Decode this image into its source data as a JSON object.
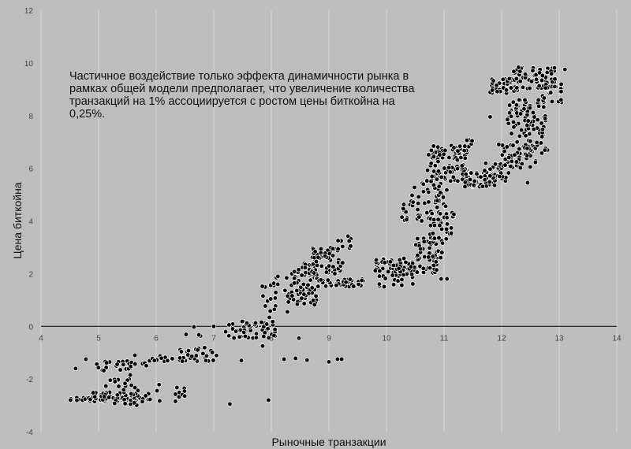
{
  "chart_data": {
    "type": "scatter",
    "title": "",
    "xlabel": "Рыночные транзакции",
    "ylabel": "Цена биткойна",
    "xlim": [
      4,
      14
    ],
    "ylim": [
      -4,
      12
    ],
    "x_ticks": [
      "4",
      "5",
      "6",
      "7",
      "8",
      "9",
      "10",
      "11",
      "12",
      "13",
      "14"
    ],
    "y_ticks": [
      "-4",
      "-2",
      "0",
      "2",
      "4",
      "6",
      "8",
      "10",
      "12"
    ],
    "grid": "vertical",
    "annotation": "Частичное воздействие только эффекта динамичности рынка в рамках общей модели предполагает, что увеличение количества транзакций на 1% ассоциируется с ростом цены биткойна на 0,25%.",
    "colors": {
      "background": "#bdbdbd",
      "point": "#000000",
      "point_edge": "#ffffff",
      "grid": "#d6d6d6",
      "zero_line": "#000000"
    },
    "clusters": [
      {
        "x": [
          4.5,
          5.9
        ],
        "y": [
          -2.85,
          -2.7
        ],
        "n": 70
      },
      {
        "x": [
          4.8,
          5.9
        ],
        "y": [
          -2.7,
          -2.5
        ],
        "n": 26
      },
      {
        "x": [
          5.2,
          5.8
        ],
        "y": [
          -3.0,
          -2.85
        ],
        "n": 8
      },
      {
        "x": [
          5.1,
          5.7
        ],
        "y": [
          -2.45,
          -2.0
        ],
        "n": 14
      },
      {
        "x": [
          4.95,
          5.7
        ],
        "y": [
          -1.7,
          -1.3
        ],
        "n": 24
      },
      {
        "x": [
          5.6,
          6.3
        ],
        "y": [
          -1.5,
          -1.1
        ],
        "n": 16
      },
      {
        "x": [
          6.0,
          6.5
        ],
        "y": [
          -2.95,
          -2.2
        ],
        "n": 12
      },
      {
        "x": [
          6.4,
          7.1
        ],
        "y": [
          -1.35,
          -0.8
        ],
        "n": 28
      },
      {
        "x": [
          6.5,
          6.8
        ],
        "y": [
          -0.4,
          0.0
        ],
        "n": 4
      },
      {
        "x": [
          7.2,
          8.1
        ],
        "y": [
          -0.45,
          0.2
        ],
        "n": 55
      },
      {
        "x": [
          7.8,
          8.1
        ],
        "y": [
          0.3,
          1.8
        ],
        "n": 12
      },
      {
        "x": [
          8.0,
          8.4
        ],
        "y": [
          0.9,
          2.0
        ],
        "n": 16
      },
      {
        "x": [
          8.35,
          8.8
        ],
        "y": [
          0.8,
          2.4
        ],
        "n": 75
      },
      {
        "x": [
          8.7,
          9.25
        ],
        "y": [
          2.0,
          3.05
        ],
        "n": 55
      },
      {
        "x": [
          9.1,
          9.4
        ],
        "y": [
          2.85,
          3.45
        ],
        "n": 10
      },
      {
        "x": [
          8.8,
          9.6
        ],
        "y": [
          1.5,
          1.8
        ],
        "n": 40
      },
      {
        "x": [
          9.8,
          10.5
        ],
        "y": [
          1.5,
          2.6
        ],
        "n": 60
      },
      {
        "x": [
          10.1,
          10.9
        ],
        "y": [
          2.0,
          2.6
        ],
        "n": 50
      },
      {
        "x": [
          10.5,
          11.0
        ],
        "y": [
          2.6,
          3.4
        ],
        "n": 35
      },
      {
        "x": [
          10.75,
          11.2
        ],
        "y": [
          3.3,
          4.4
        ],
        "n": 30
      },
      {
        "x": [
          10.2,
          11.05
        ],
        "y": [
          4.0,
          4.75
        ],
        "n": 45
      },
      {
        "x": [
          10.4,
          11.05
        ],
        "y": [
          4.75,
          5.5
        ],
        "n": 25
      },
      {
        "x": [
          10.7,
          11.4
        ],
        "y": [
          5.5,
          6.85
        ],
        "n": 90
      },
      {
        "x": [
          11.1,
          11.5
        ],
        "y": [
          6.3,
          7.1
        ],
        "n": 15
      },
      {
        "x": [
          11.3,
          11.9
        ],
        "y": [
          5.3,
          5.85
        ],
        "n": 55
      },
      {
        "x": [
          11.7,
          12.2
        ],
        "y": [
          5.5,
          6.2
        ],
        "n": 40
      },
      {
        "x": [
          12.0,
          12.6
        ],
        "y": [
          6.0,
          7.0
        ],
        "n": 50
      },
      {
        "x": [
          12.4,
          12.8
        ],
        "y": [
          6.5,
          8.6
        ],
        "n": 55
      },
      {
        "x": [
          12.1,
          12.5
        ],
        "y": [
          7.2,
          8.6
        ],
        "n": 40
      },
      {
        "x": [
          11.8,
          12.3
        ],
        "y": [
          8.85,
          9.4
        ],
        "n": 35
      },
      {
        "x": [
          12.2,
          12.95
        ],
        "y": [
          9.0,
          9.85
        ],
        "n": 60
      },
      {
        "x": [
          12.6,
          13.05
        ],
        "y": [
          8.5,
          9.2
        ],
        "n": 20
      }
    ],
    "points": [
      {
        "x": 4.6,
        "y": -1.6
      },
      {
        "x": 4.78,
        "y": -1.25
      },
      {
        "x": 5.55,
        "y": -1.85
      },
      {
        "x": 6.72,
        "y": -0.9
      },
      {
        "x": 7.28,
        "y": -2.95
      },
      {
        "x": 7.48,
        "y": -1.3
      },
      {
        "x": 7.95,
        "y": -2.8
      },
      {
        "x": 7.85,
        "y": -0.75
      },
      {
        "x": 8.22,
        "y": -1.25
      },
      {
        "x": 8.42,
        "y": -1.22
      },
      {
        "x": 8.62,
        "y": -1.28
      },
      {
        "x": 9.0,
        "y": -1.35
      },
      {
        "x": 9.15,
        "y": -1.25
      },
      {
        "x": 9.22,
        "y": -1.25
      },
      {
        "x": 8.48,
        "y": -0.45
      },
      {
        "x": 11.8,
        "y": 7.95
      },
      {
        "x": 12.45,
        "y": 5.45
      },
      {
        "x": 13.1,
        "y": 9.75
      },
      {
        "x": 11.95,
        "y": 6.9
      },
      {
        "x": 10.95,
        "y": 1.8
      },
      {
        "x": 11.05,
        "y": 1.8
      },
      {
        "x": 10.35,
        "y": 4.05
      },
      {
        "x": 7.0,
        "y": 0.0
      },
      {
        "x": 8.28,
        "y": 0.55
      }
    ]
  }
}
